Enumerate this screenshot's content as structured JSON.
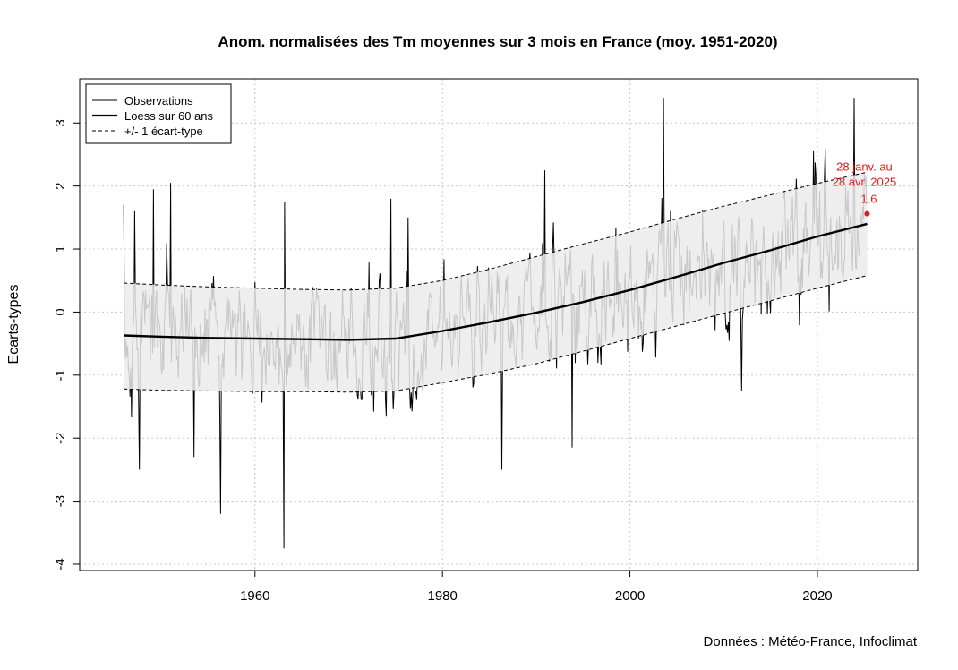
{
  "chart_data": {
    "type": "line",
    "title": "Anom. normalisées des Tm moyennes sur 3 mois en France (moy. 1951-2020)",
    "ylabel": "Ecarts-types",
    "xlabel": "",
    "source": "Données : Météo-France, Infoclimat",
    "xlim": [
      1941.3,
      2030.7
    ],
    "ylim": [
      -4.1,
      3.7
    ],
    "x_ticks": [
      "1960",
      "1980",
      "2000",
      "2020"
    ],
    "y_ticks": [
      "-4",
      "-3",
      "-2",
      "-1",
      "0",
      "1",
      "2",
      "3"
    ],
    "grid": true,
    "legend_position": "top-left",
    "legend": [
      "Observations",
      "Loess sur 60 ans",
      "+/- 1 écart-type"
    ],
    "series": [
      {
        "name": "Loess sur 60 ans",
        "x": [
          1946,
          1950,
          1955,
          1960,
          1965,
          1970,
          1975,
          1980,
          1985,
          1990,
          1995,
          2000,
          2005,
          2010,
          2015,
          2020,
          2025.3
        ],
        "values": [
          -0.37,
          -0.39,
          -0.41,
          -0.42,
          -0.43,
          -0.44,
          -0.42,
          -0.3,
          -0.16,
          -0.01,
          0.16,
          0.35,
          0.56,
          0.78,
          0.98,
          1.2,
          1.4
        ]
      },
      {
        "name": "+1 écart-type",
        "x": [
          1946,
          1950,
          1955,
          1960,
          1965,
          1970,
          1975,
          1980,
          1985,
          1990,
          1995,
          2000,
          2005,
          2010,
          2015,
          2020,
          2025.3
        ],
        "values": [
          0.46,
          0.43,
          0.4,
          0.38,
          0.36,
          0.35,
          0.38,
          0.5,
          0.68,
          0.88,
          1.08,
          1.27,
          1.48,
          1.68,
          1.86,
          2.04,
          2.22
        ]
      },
      {
        "name": "-1 écart-type",
        "x": [
          1946,
          1950,
          1955,
          1960,
          1965,
          1970,
          1975,
          1980,
          1985,
          1990,
          1995,
          2000,
          2005,
          2010,
          2015,
          2020,
          2025.3
        ],
        "values": [
          -1.22,
          -1.24,
          -1.25,
          -1.26,
          -1.26,
          -1.27,
          -1.25,
          -1.12,
          -0.98,
          -0.82,
          -0.62,
          -0.42,
          -0.22,
          -0.02,
          0.18,
          0.38,
          0.58
        ]
      }
    ],
    "observations_extremes": {
      "x": [
        1946,
        1947.2,
        1947.7,
        1949.2,
        1951,
        1953.5,
        1956.3,
        1963.1,
        1963.2,
        1974.5,
        1976.3,
        1986.3,
        1990.9,
        1993.8,
        2003.6,
        2004.3,
        2011.9,
        2019.6,
        2023.9,
        2025.3
      ],
      "values": [
        1.7,
        1.6,
        -2.5,
        1.95,
        2.05,
        -2.3,
        -3.2,
        -3.75,
        1.75,
        1.8,
        1.5,
        -2.5,
        2.25,
        -2.15,
        3.4,
        1.6,
        -1.25,
        2.55,
        3.4,
        1.6
      ]
    },
    "annotation": {
      "line1": "28 janv. au",
      "line2": "28 avr. 2025",
      "value": "1.6",
      "x": 2025.3,
      "y": 1.56,
      "color": "#e41a1c"
    },
    "colors": {
      "observations": "#000000",
      "band_fill": "#c8c8c8",
      "loess": "#000000",
      "grid": "#c8c8c8",
      "annotation": "#e41a1c"
    }
  }
}
